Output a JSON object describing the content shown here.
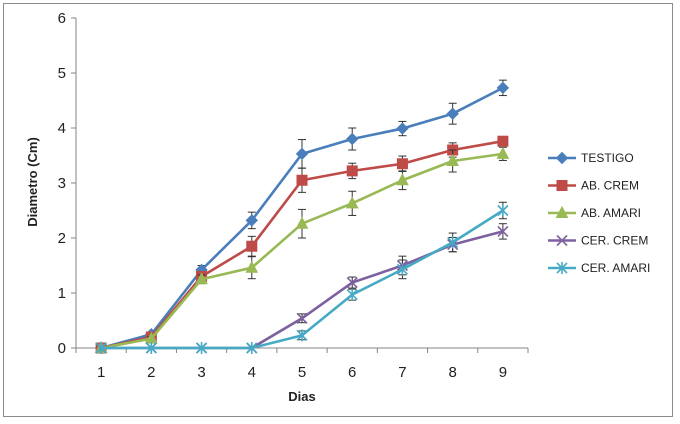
{
  "chart_data": {
    "type": "line",
    "title": "",
    "xlabel": "Dias",
    "ylabel": "Diametro (Cm)",
    "x": [
      1,
      2,
      3,
      4,
      5,
      6,
      7,
      8,
      9
    ],
    "ylim": [
      0,
      6
    ],
    "yticks": [
      0,
      1,
      2,
      3,
      4,
      5,
      6
    ],
    "grid": false,
    "legend_position": "right",
    "series": [
      {
        "name": "TESTIGO",
        "color": "#4a7ebb",
        "marker": "diamond",
        "values": [
          0,
          0.25,
          1.42,
          2.32,
          3.53,
          3.8,
          3.99,
          4.26,
          4.73
        ],
        "errors": [
          0,
          0.04,
          0.08,
          0.15,
          0.26,
          0.2,
          0.13,
          0.19,
          0.14
        ]
      },
      {
        "name": "AB. CREM",
        "color": "#be4b48",
        "marker": "square",
        "values": [
          0,
          0.2,
          1.3,
          1.85,
          3.05,
          3.22,
          3.35,
          3.6,
          3.76
        ],
        "errors": [
          0,
          0.04,
          0.08,
          0.18,
          0.22,
          0.14,
          0.14,
          0.13,
          0.08
        ]
      },
      {
        "name": "AB. AMARI",
        "color": "#98b954",
        "marker": "triangle",
        "values": [
          0,
          0.17,
          1.25,
          1.46,
          2.26,
          2.63,
          3.05,
          3.4,
          3.53
        ],
        "errors": [
          0,
          0.04,
          0.08,
          0.2,
          0.26,
          0.22,
          0.17,
          0.2,
          0.12
        ]
      },
      {
        "name": "CER. CREM",
        "color": "#7d60a0",
        "marker": "x",
        "values": [
          0,
          0,
          0,
          0,
          0.54,
          1.19,
          1.5,
          1.88,
          2.12
        ],
        "errors": [
          0,
          0,
          0,
          0,
          0.08,
          0.1,
          0.17,
          0.13,
          0.14
        ]
      },
      {
        "name": "CER. AMARI",
        "color": "#46aac5",
        "marker": "asterisk",
        "values": [
          0,
          0,
          0,
          0,
          0.23,
          0.97,
          1.43,
          1.92,
          2.5
        ],
        "errors": [
          0,
          0,
          0,
          0,
          0.08,
          0.1,
          0.17,
          0.17,
          0.15
        ]
      }
    ]
  }
}
